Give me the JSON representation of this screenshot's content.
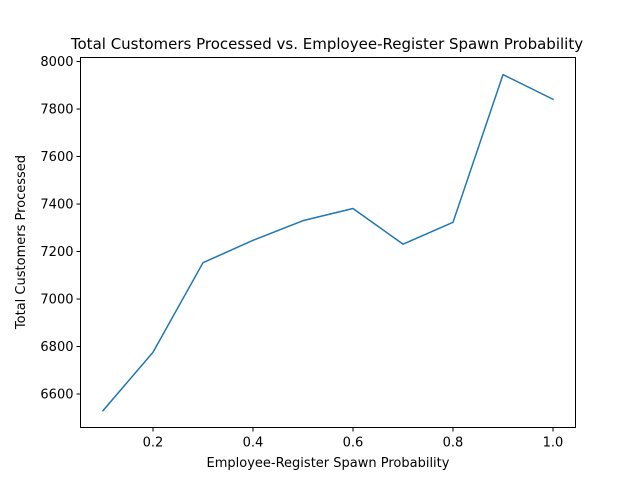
{
  "chart_data": {
    "type": "line",
    "title": "Total Customers Processed vs. Employee-Register Spawn Probability",
    "xlabel": "Employee-Register Spawn Probability",
    "ylabel": "Total Customers Processed",
    "xlim": [
      0.055,
      1.045
    ],
    "ylim": [
      6459,
      8017
    ],
    "xticks": [
      0.2,
      0.4,
      0.6,
      0.8,
      1.0
    ],
    "xtick_labels": [
      "0.2",
      "0.4",
      "0.6",
      "0.8",
      "1.0"
    ],
    "yticks": [
      6600,
      6800,
      7000,
      7200,
      7400,
      7600,
      7800,
      8000
    ],
    "ytick_labels": [
      "6600",
      "6800",
      "7000",
      "7200",
      "7400",
      "7600",
      "7800",
      "8000"
    ],
    "grid": false,
    "series": [
      {
        "color": "#1f77b4",
        "x": [
          0.1,
          0.2,
          0.3,
          0.4,
          0.5,
          0.6,
          0.7,
          0.8,
          0.9,
          1.0
        ],
        "y": [
          6530,
          6776,
          7153,
          7247,
          7330,
          7381,
          7231,
          7323,
          7945,
          7841
        ]
      }
    ]
  }
}
